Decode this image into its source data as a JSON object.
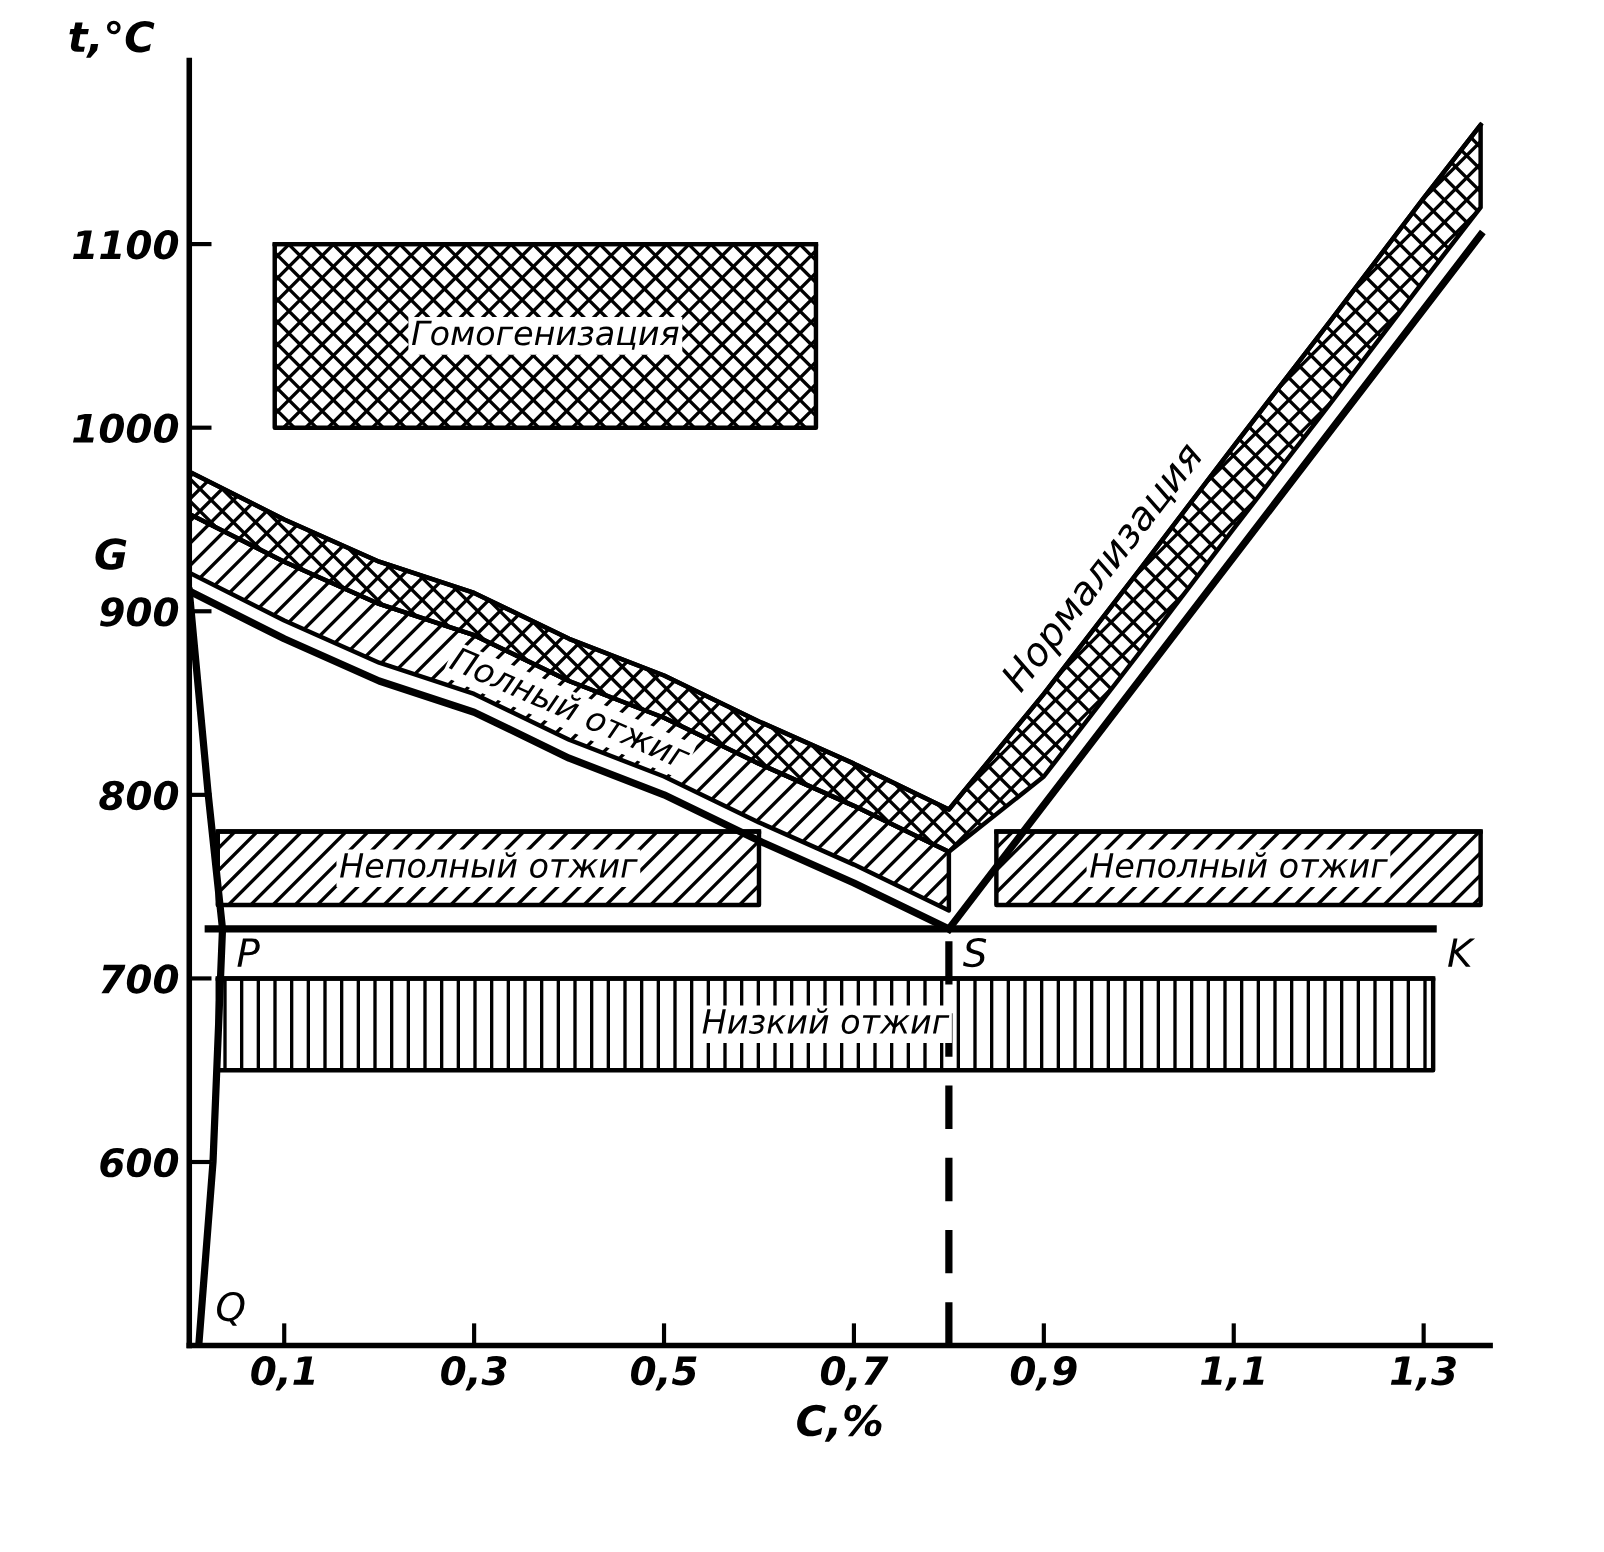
{
  "chart_data": {
    "type": "line",
    "xlabel": "C,%",
    "ylabel": "t,°C",
    "xlim": [
      0,
      1.37
    ],
    "ylim": [
      500,
      1200
    ],
    "xticks": [
      {
        "value": 0.1,
        "label": "0,1"
      },
      {
        "value": 0.3,
        "label": "0,3"
      },
      {
        "value": 0.5,
        "label": "0,5"
      },
      {
        "value": 0.7,
        "label": "0,7"
      },
      {
        "value": 0.9,
        "label": "0,9"
      },
      {
        "value": 1.1,
        "label": "1,1"
      },
      {
        "value": 1.3,
        "label": "1,3"
      }
    ],
    "yticks": [
      600,
      700,
      800,
      900,
      1000,
      1100
    ],
    "grid": false,
    "series": [
      {
        "name": "Гомогенизация",
        "color": "#000000",
        "x": [
          0.09,
          0.66
        ],
        "values": [
          1100,
          1100
        ],
        "upper": [
          1100,
          1100
        ],
        "lower": [
          1000,
          1000
        ]
      },
      {
        "name": "Полный отжиг",
        "color": "#000000",
        "x": [
          0,
          0.1,
          0.2,
          0.3,
          0.4,
          0.5,
          0.6,
          0.7,
          0.8
        ],
        "values": [
          953,
          927,
          904,
          887,
          862,
          842,
          817,
          794,
          769
        ],
        "upper": [
          953,
          927,
          904,
          887,
          862,
          842,
          817,
          794,
          769
        ],
        "lower": [
          921,
          895,
          872,
          855,
          830,
          810,
          785,
          762,
          737
        ]
      },
      {
        "name": "Нормализация",
        "color": "#000000",
        "x": [
          0,
          0.1,
          0.2,
          0.3,
          0.4,
          0.5,
          0.6,
          0.7,
          0.8,
          0.9,
          1.0,
          1.1,
          1.2,
          1.3,
          1.36
        ],
        "values": [
          976,
          950,
          927,
          910,
          885,
          865,
          840,
          817,
          792,
          855,
          922,
          990,
          1057,
          1125,
          1165
        ],
        "upper": [
          976,
          950,
          927,
          910,
          885,
          865,
          840,
          817,
          792,
          855,
          922,
          990,
          1057,
          1125,
          1165
        ],
        "lower": [
          953,
          927,
          904,
          887,
          862,
          842,
          817,
          794,
          769,
          810,
          877,
          945,
          1012,
          1080,
          1120
        ]
      },
      {
        "name": "Неполный отжиг",
        "color": "#000000",
        "x": [
          0.03,
          0.6
        ],
        "values": [
          780,
          780
        ],
        "upper": [
          780,
          780
        ],
        "lower": [
          740,
          740
        ]
      },
      {
        "name": "Неполный отжиг",
        "color": "#000000",
        "x": [
          0.85,
          1.36
        ],
        "values": [
          780,
          780
        ],
        "upper": [
          780,
          780
        ],
        "lower": [
          740,
          740
        ]
      },
      {
        "name": "Низкий отжиг",
        "color": "#000000",
        "x": [
          0.03,
          1.31
        ],
        "values": [
          700,
          700
        ],
        "upper": [
          700,
          700
        ],
        "lower": [
          650,
          650
        ]
      },
      {
        "color": "#000000",
        "x": [
          0,
          0.1,
          0.2,
          0.3,
          0.4,
          0.5,
          0.6,
          0.7,
          0.8
        ],
        "values": [
          911,
          885,
          862,
          845,
          820,
          800,
          775,
          752,
          727
        ]
      },
      {
        "color": "#000000",
        "x": [
          0.8,
          1.36
        ],
        "values": [
          727,
          1105
        ]
      },
      {
        "color": "#000000",
        "x": [
          0.02,
          1.31
        ],
        "values": [
          727,
          727
        ]
      },
      {
        "color": "#000000",
        "x": [
          0,
          0.02,
          0.035,
          0.025,
          0.01
        ],
        "values": [
          911,
          800,
          727,
          600,
          500
        ]
      },
      {
        "color": "#000000",
        "line_style": "dashed",
        "x": [
          0.8,
          0.8
        ],
        "values": [
          500,
          727
        ]
      }
    ],
    "annotations": [
      {
        "text": "G",
        "x": 0,
        "y": 911
      },
      {
        "text": "P",
        "x": 0.035,
        "y": 727
      },
      {
        "text": "S",
        "x": 0.8,
        "y": 727
      },
      {
        "text": "K",
        "x": 1.31,
        "y": 727
      },
      {
        "text": "Q",
        "x": 0.01,
        "y": 500
      }
    ]
  }
}
